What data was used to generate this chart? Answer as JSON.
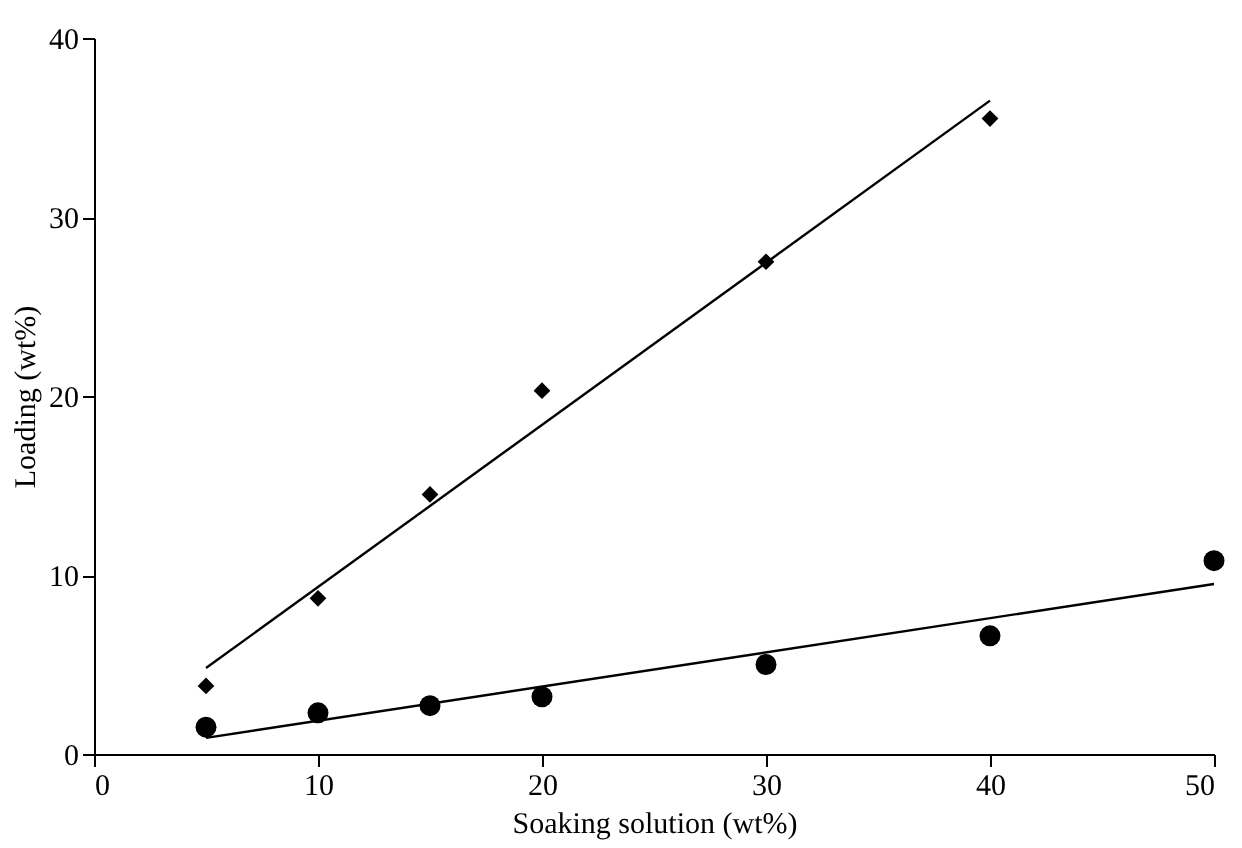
{
  "chart_data": {
    "type": "scatter",
    "xlabel": "Soaking solution (wt%)",
    "ylabel": "Loading (wt%)",
    "xlim": [
      0,
      50
    ],
    "ylim": [
      0,
      40
    ],
    "xticks": [
      0,
      10,
      20,
      30,
      40,
      50
    ],
    "yticks": [
      0,
      10,
      20,
      30,
      40
    ],
    "grid": false,
    "series": [
      {
        "marker": "diamond",
        "color": "#000000",
        "x": [
          5,
          10,
          15,
          20,
          30,
          40
        ],
        "values": [
          3.8,
          8.7,
          14.5,
          20.3,
          27.5,
          35.5
        ]
      },
      {
        "marker": "circle",
        "color": "#000000",
        "x": [
          5,
          10,
          15,
          20,
          30,
          40,
          50
        ],
        "values": [
          1.5,
          2.3,
          2.7,
          3.2,
          5.0,
          6.6,
          10.8
        ]
      },
      {
        "type": "line",
        "color": "#000000",
        "x": [
          5,
          40
        ],
        "values": [
          4.8,
          36.5
        ]
      },
      {
        "type": "line",
        "color": "#000000",
        "x": [
          5,
          50
        ],
        "values": [
          0.9,
          9.5
        ]
      }
    ]
  }
}
